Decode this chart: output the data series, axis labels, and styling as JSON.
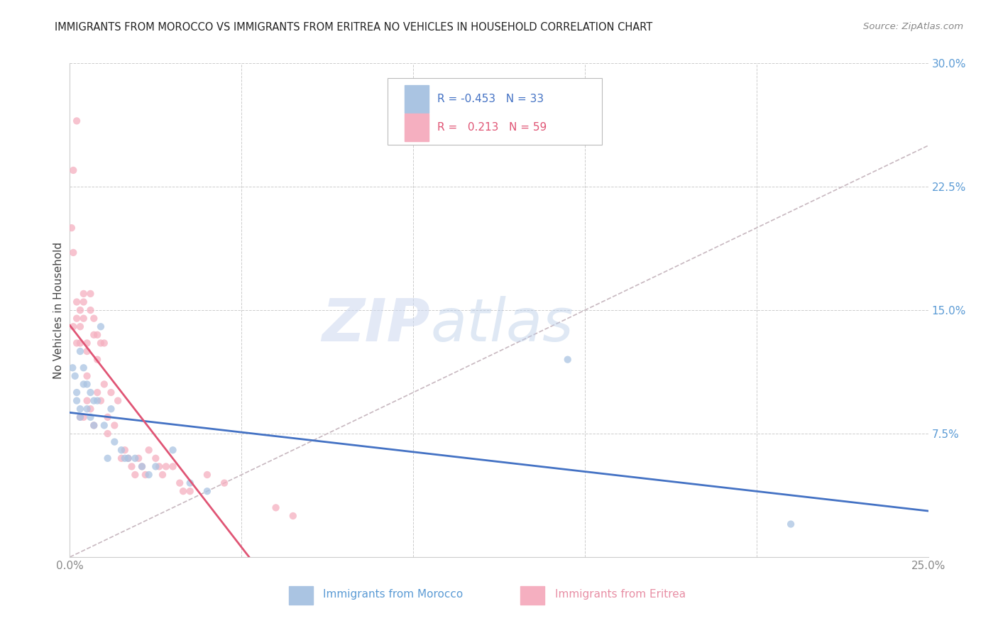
{
  "title": "IMMIGRANTS FROM MOROCCO VS IMMIGRANTS FROM ERITREA NO VEHICLES IN HOUSEHOLD CORRELATION CHART",
  "source": "Source: ZipAtlas.com",
  "ylabel": "No Vehicles in Household",
  "xlim": [
    0.0,
    0.25
  ],
  "ylim": [
    0.0,
    0.3
  ],
  "xticks": [
    0.0,
    0.05,
    0.1,
    0.15,
    0.2,
    0.25
  ],
  "yticks": [
    0.0,
    0.075,
    0.15,
    0.225,
    0.3
  ],
  "xtick_labels": [
    "0.0%",
    "",
    "",
    "",
    "",
    "25.0%"
  ],
  "ytick_labels_right": [
    "",
    "7.5%",
    "15.0%",
    "22.5%",
    "30.0%"
  ],
  "morocco_color": "#aac4e2",
  "eritrea_color": "#f5afc0",
  "morocco_line_color": "#4472c4",
  "eritrea_line_color": "#e05575",
  "diagonal_color": "#c8b8c0",
  "legend_morocco_label": "Immigrants from Morocco",
  "legend_eritrea_label": "Immigrants from Eritrea",
  "r_morocco": -0.453,
  "n_morocco": 33,
  "r_eritrea": 0.213,
  "n_eritrea": 59,
  "morocco_x": [
    0.0008,
    0.0015,
    0.002,
    0.002,
    0.003,
    0.003,
    0.003,
    0.004,
    0.004,
    0.005,
    0.005,
    0.006,
    0.006,
    0.007,
    0.007,
    0.008,
    0.009,
    0.01,
    0.011,
    0.012,
    0.013,
    0.015,
    0.016,
    0.017,
    0.019,
    0.021,
    0.023,
    0.025,
    0.03,
    0.035,
    0.04,
    0.145,
    0.21
  ],
  "morocco_y": [
    0.115,
    0.11,
    0.095,
    0.1,
    0.085,
    0.09,
    0.125,
    0.105,
    0.115,
    0.09,
    0.105,
    0.085,
    0.1,
    0.08,
    0.095,
    0.095,
    0.14,
    0.08,
    0.06,
    0.09,
    0.07,
    0.065,
    0.06,
    0.06,
    0.06,
    0.055,
    0.05,
    0.055,
    0.065,
    0.045,
    0.04,
    0.12,
    0.02
  ],
  "eritrea_x": [
    0.0005,
    0.001,
    0.001,
    0.001,
    0.002,
    0.002,
    0.002,
    0.002,
    0.003,
    0.003,
    0.003,
    0.003,
    0.004,
    0.004,
    0.004,
    0.004,
    0.005,
    0.005,
    0.005,
    0.005,
    0.006,
    0.006,
    0.006,
    0.007,
    0.007,
    0.007,
    0.008,
    0.008,
    0.008,
    0.009,
    0.009,
    0.01,
    0.01,
    0.011,
    0.011,
    0.012,
    0.013,
    0.014,
    0.015,
    0.016,
    0.017,
    0.018,
    0.019,
    0.02,
    0.021,
    0.022,
    0.023,
    0.025,
    0.026,
    0.027,
    0.028,
    0.03,
    0.032,
    0.033,
    0.035,
    0.04,
    0.045,
    0.06,
    0.065
  ],
  "eritrea_y": [
    0.2,
    0.185,
    0.235,
    0.14,
    0.265,
    0.155,
    0.145,
    0.13,
    0.15,
    0.14,
    0.13,
    0.085,
    0.16,
    0.155,
    0.145,
    0.085,
    0.13,
    0.125,
    0.11,
    0.095,
    0.16,
    0.15,
    0.09,
    0.145,
    0.135,
    0.08,
    0.135,
    0.12,
    0.1,
    0.13,
    0.095,
    0.13,
    0.105,
    0.085,
    0.075,
    0.1,
    0.08,
    0.095,
    0.06,
    0.065,
    0.06,
    0.055,
    0.05,
    0.06,
    0.055,
    0.05,
    0.065,
    0.06,
    0.055,
    0.05,
    0.055,
    0.055,
    0.045,
    0.04,
    0.04,
    0.05,
    0.045,
    0.03,
    0.025
  ],
  "watermark_zip": "ZIP",
  "watermark_atlas": "atlas",
  "background_color": "#ffffff",
  "grid_color": "#cccccc"
}
